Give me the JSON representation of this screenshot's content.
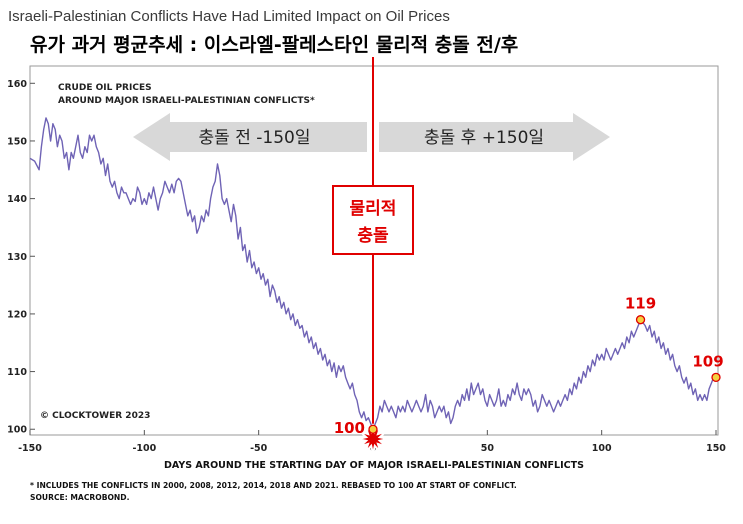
{
  "header": {
    "english_title": "Israeli-Palestinian Conflicts Have Had Limited Impact on Oil Prices",
    "korean_title": "유가 과거 평균추세 : 이스라엘-팔레스타인 물리적 충돌 전/후"
  },
  "chart_data": {
    "type": "line",
    "inset_title_line1": "CRUDE OIL PRICES",
    "inset_title_line2": "AROUND MAJOR ISRAELI-PALESTINIAN CONFLICTS*",
    "copyright": "© CLOCKTOWER 2023",
    "xlabel": "DAYS AROUND THE STARTING DAY OF MAJOR ISRAELI-PALESTINIAN CONFLICTS",
    "xlim": [
      -150,
      150
    ],
    "ylim": [
      99,
      163
    ],
    "x_ticks": [
      -150,
      -100,
      -50,
      0,
      50,
      100,
      150
    ],
    "y_ticks": [
      100,
      110,
      120,
      130,
      140,
      150,
      160
    ],
    "line_color": "#6f63b5",
    "series": [
      {
        "name": "",
        "points": [
          [
            -150,
            147
          ],
          [
            -148,
            146.5
          ],
          [
            -146,
            145
          ],
          [
            -145,
            149
          ],
          [
            -144,
            152
          ],
          [
            -143,
            154
          ],
          [
            -142,
            153
          ],
          [
            -141,
            150
          ],
          [
            -140,
            153
          ],
          [
            -139,
            152
          ],
          [
            -138,
            149
          ],
          [
            -137,
            151
          ],
          [
            -136,
            150
          ],
          [
            -135,
            147
          ],
          [
            -134,
            148
          ],
          [
            -133,
            145
          ],
          [
            -132,
            148
          ],
          [
            -131,
            147
          ],
          [
            -130,
            149
          ],
          [
            -129,
            151
          ],
          [
            -128,
            148
          ],
          [
            -127,
            147
          ],
          [
            -126,
            149
          ],
          [
            -125,
            148
          ],
          [
            -124,
            151
          ],
          [
            -123,
            150
          ],
          [
            -122,
            151
          ],
          [
            -121,
            149
          ],
          [
            -120,
            148
          ],
          [
            -119,
            146
          ],
          [
            -118,
            147
          ],
          [
            -117,
            144
          ],
          [
            -116,
            146
          ],
          [
            -115,
            143
          ],
          [
            -114,
            142
          ],
          [
            -113,
            143
          ],
          [
            -112,
            141
          ],
          [
            -111,
            140
          ],
          [
            -110,
            142
          ],
          [
            -109,
            141
          ],
          [
            -108,
            141
          ],
          [
            -107,
            140
          ],
          [
            -106,
            139
          ],
          [
            -105,
            140
          ],
          [
            -104,
            139.5
          ],
          [
            -103,
            142
          ],
          [
            -102,
            141
          ],
          [
            -101,
            139
          ],
          [
            -100,
            140
          ],
          [
            -99,
            139
          ],
          [
            -98,
            141
          ],
          [
            -97,
            140
          ],
          [
            -96,
            142
          ],
          [
            -95,
            140
          ],
          [
            -94,
            138
          ],
          [
            -93,
            140
          ],
          [
            -92,
            141
          ],
          [
            -91,
            143
          ],
          [
            -90,
            142
          ],
          [
            -89,
            141
          ],
          [
            -88,
            142.5
          ],
          [
            -87,
            141
          ],
          [
            -86,
            143
          ],
          [
            -85,
            143.5
          ],
          [
            -84,
            143
          ],
          [
            -83,
            141
          ],
          [
            -82,
            139
          ],
          [
            -81,
            137
          ],
          [
            -80,
            138
          ],
          [
            -79,
            136
          ],
          [
            -78,
            137
          ],
          [
            -77,
            134
          ],
          [
            -76,
            135
          ],
          [
            -75,
            137
          ],
          [
            -74,
            136
          ],
          [
            -73,
            138
          ],
          [
            -72,
            137
          ],
          [
            -71,
            140
          ],
          [
            -70,
            142
          ],
          [
            -69,
            143
          ],
          [
            -68,
            146
          ],
          [
            -67,
            144
          ],
          [
            -66,
            140
          ],
          [
            -65,
            139
          ],
          [
            -64,
            140
          ],
          [
            -63,
            138
          ],
          [
            -62,
            136
          ],
          [
            -61,
            139
          ],
          [
            -60,
            137
          ],
          [
            -59,
            133
          ],
          [
            -58,
            135
          ],
          [
            -57,
            131
          ],
          [
            -56,
            132
          ],
          [
            -55,
            129
          ],
          [
            -54,
            131
          ],
          [
            -53,
            128
          ],
          [
            -52,
            129
          ],
          [
            -51,
            127
          ],
          [
            -50,
            128
          ],
          [
            -49,
            126
          ],
          [
            -48,
            127
          ],
          [
            -47,
            125
          ],
          [
            -46,
            126
          ],
          [
            -45,
            123
          ],
          [
            -44,
            125
          ],
          [
            -43,
            124
          ],
          [
            -42,
            122
          ],
          [
            -41,
            123
          ],
          [
            -40,
            121
          ],
          [
            -39,
            122
          ],
          [
            -38,
            120
          ],
          [
            -37,
            121
          ],
          [
            -36,
            119
          ],
          [
            -35,
            120
          ],
          [
            -34,
            118
          ],
          [
            -33,
            119
          ],
          [
            -32,
            117.5
          ],
          [
            -31,
            118
          ],
          [
            -30,
            116
          ],
          [
            -29,
            117
          ],
          [
            -28,
            115
          ],
          [
            -27,
            116
          ],
          [
            -26,
            114
          ],
          [
            -25,
            115
          ],
          [
            -24,
            113
          ],
          [
            -23,
            114
          ],
          [
            -22,
            112
          ],
          [
            -21,
            113
          ],
          [
            -20,
            111
          ],
          [
            -19,
            112
          ],
          [
            -18,
            110
          ],
          [
            -17,
            111.5
          ],
          [
            -16,
            109
          ],
          [
            -15,
            111
          ],
          [
            -14,
            110
          ],
          [
            -13,
            111
          ],
          [
            -12,
            109
          ],
          [
            -11,
            108
          ],
          [
            -10,
            107
          ],
          [
            -9,
            108
          ],
          [
            -8,
            106
          ],
          [
            -7,
            105
          ],
          [
            -6,
            103
          ],
          [
            -5,
            102
          ],
          [
            -4,
            103
          ],
          [
            -3,
            101.5
          ],
          [
            -2,
            102
          ],
          [
            -1,
            101
          ],
          [
            0,
            100
          ],
          [
            1,
            101
          ],
          [
            2,
            102
          ],
          [
            3,
            104
          ],
          [
            4,
            103
          ],
          [
            5,
            105
          ],
          [
            6,
            104
          ],
          [
            7,
            103
          ],
          [
            8,
            104
          ],
          [
            9,
            103
          ],
          [
            10,
            102
          ],
          [
            11,
            104
          ],
          [
            12,
            103
          ],
          [
            13,
            104
          ],
          [
            14,
            103
          ],
          [
            15,
            105
          ],
          [
            16,
            104
          ],
          [
            17,
            103
          ],
          [
            18,
            104
          ],
          [
            19,
            105
          ],
          [
            20,
            104
          ],
          [
            21,
            103
          ],
          [
            22,
            104
          ],
          [
            23,
            106
          ],
          [
            24,
            103
          ],
          [
            25,
            105
          ],
          [
            26,
            104
          ],
          [
            27,
            102
          ],
          [
            28,
            103
          ],
          [
            29,
            104
          ],
          [
            30,
            103
          ],
          [
            31,
            104
          ],
          [
            32,
            102
          ],
          [
            33,
            103
          ],
          [
            34,
            101
          ],
          [
            35,
            102
          ],
          [
            36,
            104
          ],
          [
            37,
            105
          ],
          [
            38,
            104
          ],
          [
            39,
            106
          ],
          [
            40,
            105
          ],
          [
            41,
            107
          ],
          [
            42,
            105
          ],
          [
            43,
            108
          ],
          [
            44,
            106
          ],
          [
            45,
            107
          ],
          [
            46,
            108
          ],
          [
            47,
            106
          ],
          [
            48,
            107
          ],
          [
            49,
            105
          ],
          [
            50,
            104
          ],
          [
            51,
            106
          ],
          [
            52,
            105
          ],
          [
            53,
            104
          ],
          [
            54,
            105
          ],
          [
            55,
            107
          ],
          [
            56,
            104
          ],
          [
            57,
            105
          ],
          [
            58,
            104
          ],
          [
            59,
            106
          ],
          [
            60,
            105
          ],
          [
            61,
            107
          ],
          [
            62,
            106
          ],
          [
            63,
            108
          ],
          [
            64,
            106
          ],
          [
            65,
            105
          ],
          [
            66,
            107
          ],
          [
            67,
            106
          ],
          [
            68,
            107
          ],
          [
            69,
            106
          ],
          [
            70,
            104
          ],
          [
            71,
            105
          ],
          [
            72,
            103
          ],
          [
            73,
            104
          ],
          [
            74,
            106
          ],
          [
            75,
            105
          ],
          [
            76,
            104
          ],
          [
            77,
            105
          ],
          [
            78,
            104
          ],
          [
            79,
            103
          ],
          [
            80,
            104
          ],
          [
            81,
            105
          ],
          [
            82,
            104
          ],
          [
            83,
            105
          ],
          [
            84,
            106
          ],
          [
            85,
            105
          ],
          [
            86,
            107
          ],
          [
            87,
            106
          ],
          [
            88,
            108
          ],
          [
            89,
            107
          ],
          [
            90,
            109
          ],
          [
            91,
            108
          ],
          [
            92,
            110
          ],
          [
            93,
            109
          ],
          [
            94,
            111
          ],
          [
            95,
            110
          ],
          [
            96,
            112
          ],
          [
            97,
            111
          ],
          [
            98,
            113
          ],
          [
            99,
            112
          ],
          [
            100,
            113
          ],
          [
            101,
            112
          ],
          [
            102,
            114
          ],
          [
            103,
            113
          ],
          [
            104,
            112
          ],
          [
            105,
            113
          ],
          [
            106,
            114
          ],
          [
            107,
            113
          ],
          [
            108,
            114
          ],
          [
            109,
            115
          ],
          [
            110,
            114
          ],
          [
            111,
            116
          ],
          [
            112,
            115
          ],
          [
            113,
            117
          ],
          [
            114,
            116
          ],
          [
            115,
            117
          ],
          [
            116,
            118
          ],
          [
            117,
            119
          ],
          [
            118,
            118.5
          ],
          [
            119,
            118
          ],
          [
            120,
            117
          ],
          [
            121,
            118
          ],
          [
            122,
            116
          ],
          [
            123,
            117
          ],
          [
            124,
            115
          ],
          [
            125,
            116
          ],
          [
            126,
            114
          ],
          [
            127,
            115
          ],
          [
            128,
            113
          ],
          [
            129,
            114
          ],
          [
            130,
            112
          ],
          [
            131,
            113
          ],
          [
            132,
            111
          ],
          [
            133,
            110
          ],
          [
            134,
            111
          ],
          [
            135,
            109
          ],
          [
            136,
            108
          ],
          [
            137,
            109
          ],
          [
            138,
            107
          ],
          [
            139,
            108
          ],
          [
            140,
            106
          ],
          [
            141,
            107
          ],
          [
            142,
            105
          ],
          [
            143,
            106
          ],
          [
            144,
            105
          ],
          [
            145,
            106
          ],
          [
            146,
            105
          ],
          [
            147,
            107
          ],
          [
            148,
            108
          ],
          [
            149,
            109
          ],
          [
            150,
            109
          ]
        ]
      }
    ]
  },
  "overlay": {
    "before_arrow_label": "충돌 전 -150일",
    "after_arrow_label": "충돌 후 +150일",
    "conflict_box_line1": "물리적",
    "conflict_box_line2": "충돌",
    "conflict_x": 0,
    "arrow_color": "#d8d8d8",
    "accent_color": "#e00000",
    "marker_fill": "#f4d03f",
    "annotations": [
      {
        "x": 0,
        "y": 100,
        "label": "100"
      },
      {
        "x": 117,
        "y": 119,
        "label": "119"
      },
      {
        "x": 150,
        "y": 109,
        "label": "109"
      }
    ]
  },
  "footnote": {
    "line1": "* INCLUDES THE CONFLICTS IN 2000, 2008, 2012, 2014, 2018 AND 2021. REBASED TO 100 AT START OF CONFLICT.",
    "line2": "SOURCE: MACROBOND."
  }
}
